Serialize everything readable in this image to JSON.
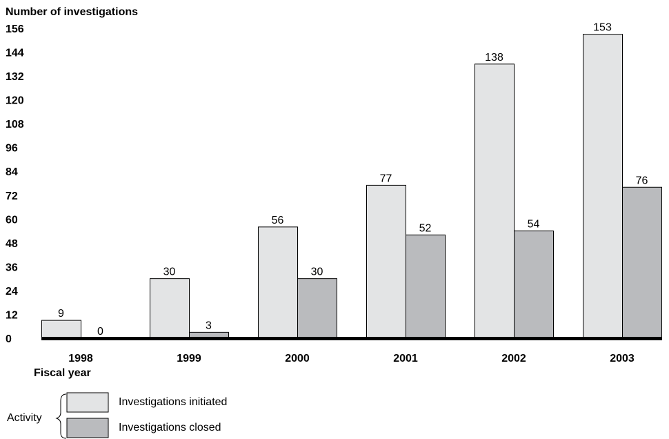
{
  "chart_data": {
    "type": "bar",
    "ylabel": "Number of investigations",
    "xlabel": "Fiscal year",
    "ylim": [
      0,
      156
    ],
    "yticks": [
      0,
      12,
      24,
      36,
      48,
      60,
      72,
      84,
      96,
      108,
      120,
      132,
      144,
      156
    ],
    "categories": [
      "1998",
      "1999",
      "2000",
      "2001",
      "2002",
      "2003"
    ],
    "series": [
      {
        "name": "Investigations initiated",
        "color": "#e3e4e5",
        "values": [
          9,
          30,
          56,
          77,
          138,
          153
        ]
      },
      {
        "name": "Investigations closed",
        "color": "#babbbe",
        "values": [
          0,
          3,
          30,
          52,
          54,
          76
        ]
      }
    ],
    "legend": {
      "title": "Activity",
      "placement": "bottom-left"
    },
    "grid": false
  }
}
